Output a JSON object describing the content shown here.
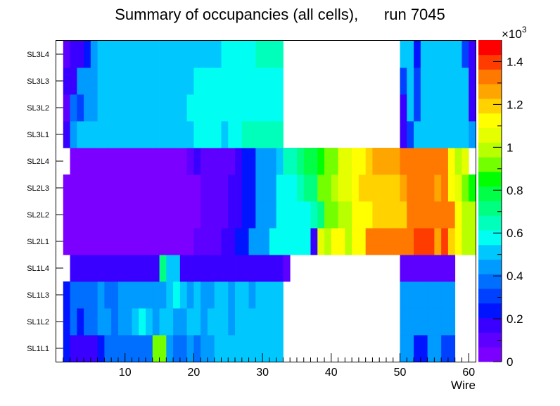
{
  "chart_data": {
    "type": "heatmap",
    "title": "Summary of occupancies (all cells),      run 7045",
    "xlabel": "Wire",
    "ylabel": "",
    "x_range": [
      0,
      61
    ],
    "x_ticks": [
      "10",
      "20",
      "30",
      "40",
      "50",
      "60"
    ],
    "y_labels": [
      "SL1L1",
      "SL1L2",
      "SL1L3",
      "SL1L4",
      "SL2L1",
      "SL2L2",
      "SL2L3",
      "SL2L4",
      "SL3L1",
      "SL3L2",
      "SL3L3",
      "SL3L4"
    ],
    "z_range": [
      0,
      1500
    ],
    "z_multiplier": "×10",
    "z_exponent": "3",
    "z_ticks": [
      "0",
      "0.2",
      "0.4",
      "0.6",
      "0.8",
      "1",
      "1.2",
      "1.4"
    ],
    "palette": [
      "#7b00ff",
      "#5d00ff",
      "#3a00ff",
      "#0014ff",
      "#0041ff",
      "#006eff",
      "#009bff",
      "#00c8ff",
      "#00fff2",
      "#00ffbb",
      "#00ff80",
      "#00ff46",
      "#00ff00",
      "#73ff00",
      "#b8ff00",
      "#e6ff00",
      "#ffff00",
      "#ffd200",
      "#ffa500",
      "#ff7800",
      "#ff3c00",
      "#ff0000"
    ],
    "rows": {
      "SL1L1": [
        null,
        220,
        200,
        200,
        200,
        200,
        220,
        380,
        380,
        380,
        380,
        380,
        380,
        380,
        900,
        900,
        420,
        380,
        380,
        420,
        380,
        420,
        420,
        480,
        480,
        480,
        480,
        480,
        480,
        480,
        480,
        480,
        480,
        0,
        0,
        0,
        0,
        0,
        0,
        0,
        0,
        0,
        0,
        0,
        0,
        0,
        0,
        0,
        0,
        0,
        420,
        420,
        250,
        250,
        420,
        420,
        300,
        300,
        0,
        0,
        0
      ],
      "SL1L2": [
        null,
        220,
        380,
        220,
        380,
        380,
        420,
        420,
        380,
        420,
        420,
        480,
        600,
        480,
        420,
        480,
        480,
        420,
        420,
        480,
        480,
        420,
        480,
        480,
        480,
        420,
        480,
        480,
        480,
        520,
        520,
        520,
        520,
        0,
        0,
        0,
        0,
        0,
        0,
        0,
        0,
        0,
        0,
        0,
        0,
        0,
        0,
        0,
        0,
        0,
        420,
        420,
        420,
        420,
        420,
        420,
        420,
        420,
        0,
        0,
        0
      ],
      "SL1L3": [
        null,
        220,
        380,
        380,
        380,
        380,
        420,
        380,
        380,
        420,
        420,
        420,
        420,
        420,
        420,
        420,
        520,
        600,
        480,
        420,
        480,
        420,
        420,
        480,
        480,
        420,
        480,
        480,
        420,
        480,
        480,
        480,
        480,
        0,
        0,
        0,
        0,
        0,
        0,
        0,
        0,
        0,
        0,
        0,
        0,
        0,
        0,
        0,
        0,
        0,
        420,
        420,
        420,
        420,
        420,
        420,
        420,
        420,
        0,
        0,
        0
      ],
      "SL1L4": [
        null,
        0,
        150,
        150,
        150,
        150,
        150,
        150,
        150,
        150,
        150,
        150,
        150,
        150,
        150,
        700,
        480,
        480,
        150,
        150,
        150,
        150,
        150,
        150,
        150,
        150,
        150,
        150,
        150,
        150,
        150,
        150,
        150,
        100,
        0,
        0,
        0,
        0,
        0,
        0,
        0,
        0,
        0,
        0,
        0,
        0,
        0,
        0,
        0,
        0,
        100,
        100,
        100,
        100,
        100,
        100,
        100,
        100,
        0,
        0,
        0
      ],
      "SL2L1": [
        null,
        50,
        50,
        50,
        50,
        50,
        50,
        50,
        50,
        50,
        50,
        50,
        50,
        50,
        50,
        50,
        50,
        50,
        50,
        50,
        120,
        120,
        120,
        120,
        200,
        200,
        270,
        270,
        420,
        420,
        470,
        550,
        550,
        550,
        550,
        550,
        550,
        150,
        1050,
        1000,
        1150,
        1100,
        1000,
        1150,
        1100,
        1300,
        1300,
        1300,
        1300,
        1300,
        1300,
        1350,
        1400,
        1400,
        1400,
        1250,
        1400,
        1200,
        1150,
        1000,
        1000
      ],
      "SL2L2": [
        null,
        50,
        50,
        50,
        50,
        50,
        50,
        50,
        50,
        50,
        50,
        50,
        50,
        50,
        50,
        50,
        50,
        50,
        50,
        50,
        50,
        120,
        120,
        120,
        120,
        200,
        200,
        270,
        270,
        420,
        420,
        470,
        550,
        600,
        600,
        550,
        600,
        650,
        700,
        900,
        900,
        1000,
        1000,
        1150,
        1150,
        1150,
        1200,
        1200,
        1200,
        1200,
        1200,
        1300,
        1350,
        1350,
        1350,
        1350,
        1300,
        1300,
        1150,
        1000,
        1000
      ],
      "SL2L3": [
        null,
        50,
        50,
        50,
        50,
        50,
        50,
        50,
        50,
        50,
        50,
        50,
        50,
        50,
        50,
        50,
        50,
        50,
        50,
        50,
        50,
        120,
        120,
        120,
        120,
        200,
        200,
        270,
        270,
        420,
        420,
        470,
        550,
        600,
        600,
        650,
        700,
        700,
        950,
        900,
        1000,
        1050,
        1050,
        1100,
        1200,
        1200,
        1200,
        1200,
        1200,
        1200,
        1250,
        1350,
        1300,
        1350,
        1350,
        1250,
        1300,
        1100,
        1050,
        950,
        850
      ],
      "SL2L4": [
        null,
        null,
        50,
        50,
        50,
        50,
        50,
        50,
        50,
        50,
        50,
        50,
        50,
        50,
        50,
        50,
        50,
        50,
        50,
        100,
        150,
        120,
        120,
        120,
        120,
        120,
        200,
        270,
        270,
        420,
        420,
        470,
        500,
        650,
        650,
        700,
        750,
        800,
        850,
        900,
        950,
        1050,
        1050,
        1100,
        1150,
        1200,
        1250,
        1250,
        1250,
        1250,
        1300,
        1350,
        1350,
        1350,
        1350,
        1350,
        1350,
        1100,
        1000,
        1050,
        null
      ],
      "SL3L1": [
        null,
        200,
        420,
        530,
        530,
        530,
        530,
        530,
        530,
        530,
        530,
        530,
        530,
        530,
        530,
        530,
        530,
        530,
        530,
        530,
        600,
        600,
        600,
        600,
        530,
        600,
        600,
        650,
        650,
        650,
        650,
        650,
        650,
        0,
        0,
        0,
        0,
        0,
        0,
        0,
        0,
        0,
        0,
        0,
        0,
        0,
        0,
        0,
        0,
        0,
        200,
        300,
        530,
        530,
        530,
        530,
        530,
        530,
        530,
        530,
        450
      ],
      "SL3L2": [
        null,
        100,
        400,
        300,
        450,
        450,
        500,
        500,
        500,
        500,
        500,
        500,
        500,
        500,
        500,
        500,
        500,
        500,
        530,
        550,
        550,
        550,
        600,
        550,
        550,
        600,
        600,
        600,
        600,
        600,
        600,
        600,
        600,
        0,
        0,
        0,
        0,
        0,
        0,
        0,
        0,
        0,
        0,
        0,
        0,
        0,
        0,
        0,
        0,
        0,
        200,
        530,
        300,
        530,
        530,
        530,
        530,
        530,
        530,
        530,
        200
      ],
      "SL3L3": [
        null,
        150,
        150,
        450,
        450,
        450,
        500,
        500,
        500,
        500,
        500,
        500,
        500,
        500,
        500,
        500,
        500,
        500,
        500,
        500,
        600,
        550,
        550,
        550,
        600,
        550,
        550,
        600,
        600,
        600,
        600,
        600,
        600,
        0,
        0,
        0,
        0,
        0,
        0,
        0,
        0,
        0,
        0,
        0,
        0,
        0,
        0,
        0,
        0,
        0,
        300,
        530,
        300,
        530,
        530,
        530,
        530,
        530,
        530,
        530,
        200
      ],
      "SL3L4": [
        null,
        100,
        200,
        200,
        250,
        450,
        500,
        500,
        530,
        530,
        530,
        530,
        530,
        530,
        530,
        530,
        530,
        530,
        530,
        530,
        530,
        530,
        530,
        530,
        550,
        550,
        600,
        600,
        600,
        650,
        650,
        650,
        650,
        0,
        0,
        0,
        0,
        0,
        0,
        0,
        0,
        0,
        0,
        0,
        0,
        0,
        0,
        0,
        0,
        0,
        530,
        530,
        250,
        530,
        530,
        530,
        530,
        530,
        500,
        300,
        200
      ]
    }
  }
}
